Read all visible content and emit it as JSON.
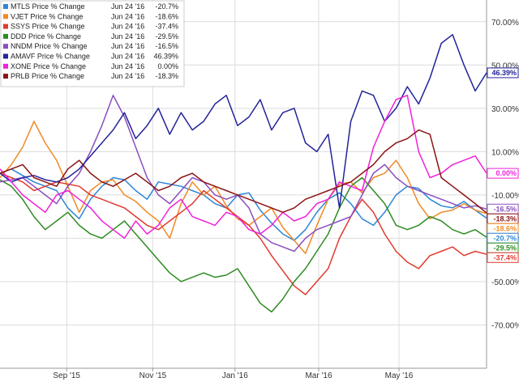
{
  "chart_data": {
    "type": "line",
    "x_ticks": [
      "Sep '15",
      "Nov '15",
      "Jan '16",
      "Mar '16",
      "May '16"
    ],
    "y_ticks": [
      "70.00%",
      "50.00%",
      "30.00%",
      "10.00%",
      "-10.00%",
      "-30.00%",
      "-50.00%",
      "-70.00%"
    ],
    "y_tick_values": [
      70,
      50,
      30,
      10,
      -10,
      -30,
      -50,
      -70
    ],
    "ylim": [
      -90,
      80
    ],
    "grid": true,
    "legend_position": "top-left",
    "series": [
      {
        "name": "MTLS Price % Change",
        "date": "Jun 24 '16",
        "value_label": "-20.7%",
        "end_label": "-20.7%",
        "color": "#2e86d6",
        "values": [
          0,
          2,
          -1,
          -4,
          -6,
          -8,
          -16,
          -21,
          -12,
          -6,
          -2,
          -3,
          -8,
          -12,
          -4,
          -5,
          -6,
          -8,
          -10,
          -14,
          -16,
          -10,
          -9,
          -17,
          -23,
          -28,
          -31,
          -26,
          -18,
          -12,
          -9,
          -14,
          -21,
          -24,
          -18,
          -10,
          -6,
          -7,
          -12,
          -15,
          -16,
          -13,
          -17,
          -20.7
        ]
      },
      {
        "name": "VJET Price % Change",
        "date": "Jun 24 '16",
        "value_label": "-18.6%",
        "end_label": "-18.6%",
        "color": "#f08a24",
        "values": [
          -2,
          4,
          12,
          24,
          14,
          6,
          -6,
          -18,
          -8,
          -4,
          -3,
          -10,
          -13,
          -18,
          -22,
          -30,
          -14,
          -4,
          -10,
          -6,
          -15,
          -21,
          -24,
          -20,
          -16,
          -25,
          -31,
          -37,
          -24,
          -12,
          -5,
          -4,
          -9,
          -2,
          0,
          6,
          -2,
          -14,
          -21,
          -18,
          -17,
          -14,
          -17,
          -18.6
        ]
      },
      {
        "name": "SSYS Price % Change",
        "date": "Jun 24 '16",
        "value_label": "-37.4%",
        "end_label": "-37.4%",
        "color": "#e03a2e",
        "values": [
          0,
          -2,
          -4,
          -8,
          -6,
          -4,
          -5,
          -6,
          -10,
          -12,
          -14,
          -16,
          -20,
          -24,
          -26,
          -22,
          -18,
          -14,
          -8,
          -12,
          -16,
          -20,
          -24,
          -30,
          -38,
          -45,
          -52,
          -56,
          -50,
          -44,
          -30,
          -20,
          -12,
          -18,
          -28,
          -36,
          -41,
          -44,
          -38,
          -36,
          -34,
          -38,
          -36,
          -37.4
        ]
      },
      {
        "name": "DDD Price % Change",
        "date": "Jun 24 '16",
        "value_label": "-29.5%",
        "end_label": "-29.5%",
        "color": "#2e8b22",
        "values": [
          -3,
          -6,
          -12,
          -20,
          -26,
          -22,
          -18,
          -24,
          -28,
          -30,
          -26,
          -22,
          -28,
          -34,
          -40,
          -46,
          -50,
          -48,
          -46,
          -48,
          -47,
          -44,
          -52,
          -60,
          -64,
          -58,
          -50,
          -44,
          -36,
          -28,
          -16,
          -6,
          -2,
          -8,
          -14,
          -24,
          -26,
          -24,
          -20,
          -22,
          -26,
          -28,
          -26,
          -29.5
        ]
      },
      {
        "name": "NNDM Price % Change",
        "date": "Jun 24 '16",
        "value_label": "-16.5%",
        "end_label": "-16.5%",
        "color": "#8a4ec0",
        "values": [
          -4,
          -3,
          -2,
          -6,
          -10,
          -14,
          -6,
          0,
          10,
          22,
          36,
          26,
          12,
          -2,
          -10,
          -14,
          -8,
          -2,
          -4,
          -10,
          -12,
          -10,
          -16,
          -28,
          -32,
          -34,
          -36,
          -30,
          -26,
          -24,
          -22,
          -20,
          -10,
          0,
          4,
          -2,
          -6,
          -8,
          -10,
          -12,
          -14,
          -16,
          -15,
          -16.5
        ]
      },
      {
        "name": "AMAVF Price % Change",
        "date": "Jun 24 '16",
        "value_label": "46.39%",
        "end_label": "46.39%",
        "color": "#23239a",
        "values": [
          0,
          -4,
          -2,
          -1,
          -3,
          -4,
          -2,
          2,
          8,
          14,
          20,
          28,
          16,
          22,
          30,
          18,
          28,
          20,
          24,
          32,
          36,
          22,
          26,
          34,
          20,
          28,
          30,
          14,
          10,
          18,
          -16,
          24,
          38,
          36,
          24,
          30,
          40,
          32,
          44,
          60,
          64,
          50,
          38,
          46.39
        ]
      },
      {
        "name": "XONE Price % Change",
        "date": "Jun 24 '16",
        "value_label": "0.00%",
        "end_label": "0.00%",
        "color": "#f022d8",
        "values": [
          2,
          -4,
          -10,
          -14,
          -18,
          -10,
          -8,
          -12,
          -16,
          -22,
          -26,
          -30,
          -22,
          -28,
          -24,
          -16,
          -12,
          -20,
          -22,
          -24,
          -18,
          -20,
          -26,
          -28,
          -24,
          -18,
          -22,
          -20,
          -14,
          -12,
          -4,
          -6,
          -8,
          12,
          24,
          34,
          36,
          10,
          -2,
          0,
          4,
          6,
          8,
          0.0
        ]
      },
      {
        "name": "PRLB Price % Change",
        "date": "Jun 24 '16",
        "value_label": "-18.3%",
        "end_label": "-18.3%",
        "color": "#8b1414",
        "values": [
          0,
          2,
          4,
          -2,
          -4,
          -6,
          2,
          6,
          0,
          -4,
          -6,
          -3,
          0,
          -4,
          -8,
          -6,
          -2,
          0,
          -4,
          -6,
          -8,
          -10,
          -12,
          -14,
          -16,
          -18,
          -16,
          -12,
          -10,
          -8,
          -6,
          -4,
          0,
          4,
          10,
          14,
          16,
          20,
          18,
          -2,
          -6,
          -10,
          -14,
          -18.3
        ]
      }
    ]
  }
}
